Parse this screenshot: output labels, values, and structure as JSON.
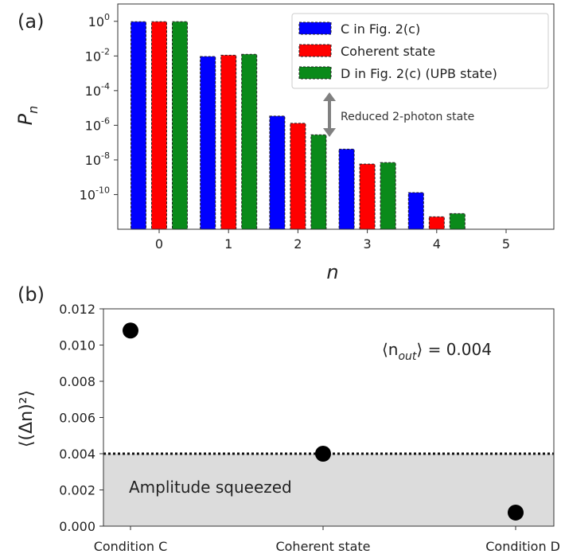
{
  "chart_data": [
    {
      "type": "bar",
      "panel_label": "(a)",
      "xlabel": "n",
      "ylabel": "P",
      "ylabel_sub": "n",
      "yscale": "log",
      "ylim": [
        1e-12,
        10.0
      ],
      "categories": [
        "0",
        "1",
        "2",
        "3",
        "4",
        "5"
      ],
      "yticks": [
        {
          "value": 1,
          "base": "10",
          "exp": "0"
        },
        {
          "value": 0.01,
          "base": "10",
          "exp": "-2"
        },
        {
          "value": 0.0001,
          "base": "10",
          "exp": "-4"
        },
        {
          "value": 1e-06,
          "base": "10",
          "exp": "-6"
        },
        {
          "value": 1e-08,
          "base": "10",
          "exp": "-8"
        },
        {
          "value": 1e-10,
          "base": "10",
          "exp": "-10"
        }
      ],
      "series": [
        {
          "name": "C in Fig. 2(c)",
          "color": "#0000ff",
          "values": [
            0.95,
            0.0093,
            3.4e-06,
            4.2e-08,
            1.3e-10,
            null
          ]
        },
        {
          "name": "Coherent state",
          "color": "#ff0000",
          "values": [
            0.95,
            0.011,
            1.3e-06,
            5.8e-09,
            5.2e-12,
            null
          ]
        },
        {
          "name": "D in Fig. 2(c) (UPB state)",
          "color": "#0a8a1a",
          "values": [
            0.95,
            0.0125,
            2.8e-07,
            7e-09,
            8e-12,
            null
          ]
        }
      ],
      "legend_position": "top-right",
      "annotation": "Reduced 2-photon state"
    },
    {
      "type": "scatter",
      "panel_label": "(b)",
      "ylabel": "⟨(Δn)²⟩",
      "ylim": [
        0,
        0.012
      ],
      "yticks": [
        "0.000",
        "0.002",
        "0.004",
        "0.006",
        "0.008",
        "0.010",
        "0.012"
      ],
      "categories": [
        "Condition C",
        "Coherent state",
        "Condition D"
      ],
      "values": [
        0.0108,
        0.004,
        0.00075
      ],
      "reference_line": 0.004,
      "shaded_region_label": "Amplitude squeezed",
      "annotation": "⟨n_out⟩ = 0.004"
    }
  ]
}
